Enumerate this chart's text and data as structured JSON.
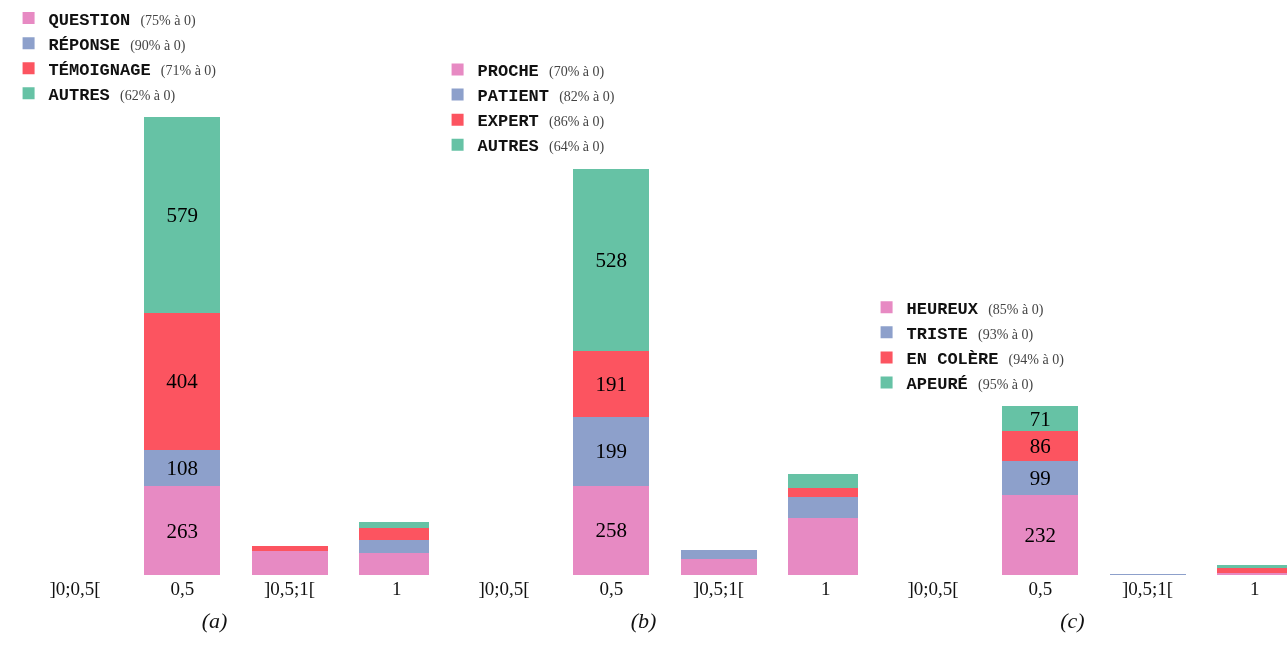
{
  "chart_data": [
    {
      "type": "bar",
      "stacked": true,
      "legend": "top left",
      "xlabel": "(a)",
      "categories": [
        "]0;0,5[",
        "0,5",
        "]0,5;1[",
        "1"
      ],
      "series": [
        {
          "name": "QUESTION (75% à 0)",
          "color": "#e78ac3",
          "values": [
            0,
            263,
            70,
            64
          ],
          "value_labels": [
            null,
            "263",
            null,
            null
          ]
        },
        {
          "name": "RÉPONSE (90% à 0)",
          "color": "#8da0cb",
          "values": [
            0,
            108,
            0,
            39
          ],
          "value_labels": [
            null,
            "108",
            null,
            null
          ]
        },
        {
          "name": "TÉMOIGNAGE (71% à 0)",
          "color": "#fc5460",
          "values": [
            0,
            404,
            17,
            37
          ],
          "value_labels": [
            null,
            "404",
            null,
            null
          ]
        },
        {
          "name": "AUTRES (62% à 0)",
          "color": "#66c2a5",
          "values": [
            0,
            579,
            0,
            17
          ],
          "value_labels": [
            null,
            "579",
            null,
            null
          ]
        }
      ]
    },
    {
      "type": "bar",
      "stacked": true,
      "legend": "top left",
      "xlabel": "(b)",
      "categories": [
        "]0;0,5[",
        "0,5",
        "]0,5;1[",
        "1"
      ],
      "series": [
        {
          "name": "PROCHE (70% à 0)",
          "color": "#e78ac3",
          "values": [
            0,
            258,
            46,
            166
          ],
          "value_labels": [
            null,
            "258",
            null,
            null
          ]
        },
        {
          "name": "PATIENT (82% à 0)",
          "color": "#8da0cb",
          "values": [
            0,
            199,
            27,
            60
          ],
          "value_labels": [
            null,
            "199",
            null,
            null
          ]
        },
        {
          "name": "EXPERT (86% à 0)",
          "color": "#fc5460",
          "values": [
            0,
            191,
            0,
            27
          ],
          "value_labels": [
            null,
            "191",
            null,
            null
          ]
        },
        {
          "name": "AUTRES (64% à 0)",
          "color": "#66c2a5",
          "values": [
            0,
            528,
            0,
            38
          ],
          "value_labels": [
            null,
            "528",
            null,
            null
          ]
        }
      ]
    },
    {
      "type": "bar",
      "stacked": true,
      "legend": "top left",
      "xlabel": "(c)",
      "categories": [
        "]0;0,5[",
        "0,5",
        "]0,5;1[",
        "1"
      ],
      "series": [
        {
          "name": "HEUREUX (85% à 0)",
          "color": "#e78ac3",
          "values": [
            0,
            232,
            0,
            7
          ],
          "value_labels": [
            null,
            "232",
            null,
            null
          ]
        },
        {
          "name": "TRISTE (93% à 0)",
          "color": "#8da0cb",
          "values": [
            0,
            99,
            2,
            0
          ],
          "value_labels": [
            null,
            "99",
            null,
            null
          ]
        },
        {
          "name": "EN COLÈRE (94% à 0)",
          "color": "#fc5460",
          "values": [
            0,
            86,
            0,
            14
          ],
          "value_labels": [
            null,
            "86",
            null,
            null
          ]
        },
        {
          "name": "APEURÉ (95% à 0)",
          "color": "#66c2a5",
          "values": [
            0,
            71,
            0,
            7
          ],
          "value_labels": [
            null,
            "71",
            null,
            null
          ]
        }
      ]
    }
  ]
}
